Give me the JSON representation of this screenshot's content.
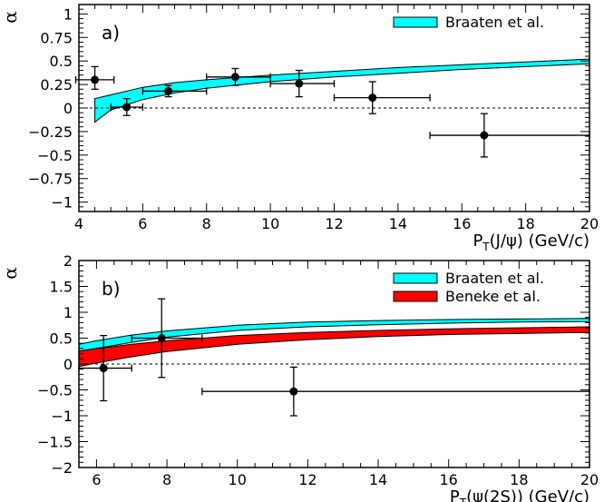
{
  "chart_data": [
    {
      "type": "scatter",
      "panel_label": "a)",
      "xlabel_main": "P",
      "xlabel_sub": "T",
      "xlabel_rest": "(J/ψ) (GeV/c)",
      "ylabel": "α",
      "xlim": [
        4,
        20
      ],
      "ylim": [
        -1.1,
        1.1
      ],
      "xticks": [
        4,
        6,
        8,
        10,
        12,
        14,
        16,
        18,
        20
      ],
      "yticks": [
        -1,
        -0.75,
        -0.5,
        -0.25,
        0,
        0.25,
        0.5,
        0.75,
        1
      ],
      "ytick_labels": [
        "−1",
        "−0.75",
        "−0.5",
        "−0.25",
        "0",
        "0.25",
        "0.5",
        "0.75",
        "1"
      ],
      "zero_line": true,
      "legend_position": "top-right",
      "bands": [
        {
          "name": "Braaten et al.",
          "color": "#00ffff",
          "x": [
            4.5,
            5,
            6,
            7,
            8,
            10,
            12,
            14,
            16,
            18,
            20
          ],
          "lower": [
            -0.15,
            -0.02,
            0.09,
            0.16,
            0.21,
            0.28,
            0.33,
            0.37,
            0.41,
            0.44,
            0.47
          ],
          "upper": [
            0.1,
            0.14,
            0.22,
            0.27,
            0.3,
            0.35,
            0.39,
            0.43,
            0.46,
            0.49,
            0.52
          ]
        }
      ],
      "points": [
        {
          "x": 4.5,
          "y": 0.3,
          "xerr": [
            0.6,
            0.6
          ],
          "yerr": [
            0.1,
            0.14
          ]
        },
        {
          "x": 5.5,
          "y": 0.01,
          "xerr": [
            0.5,
            0.5
          ],
          "yerr": [
            0.09,
            0.09
          ]
        },
        {
          "x": 6.8,
          "y": 0.18,
          "xerr": [
            0.8,
            1.2
          ],
          "yerr": [
            0.06,
            0.06
          ]
        },
        {
          "x": 8.9,
          "y": 0.33,
          "xerr": [
            0.9,
            1.1
          ],
          "yerr": [
            0.09,
            0.09
          ]
        },
        {
          "x": 10.9,
          "y": 0.26,
          "xerr": [
            0.9,
            1.1
          ],
          "yerr": [
            0.14,
            0.14
          ]
        },
        {
          "x": 13.2,
          "y": 0.11,
          "xerr": [
            1.2,
            1.8
          ],
          "yerr": [
            0.17,
            0.17
          ]
        },
        {
          "x": 16.7,
          "y": -0.29,
          "xerr": [
            1.7,
            3.3
          ],
          "yerr": [
            0.23,
            0.23
          ]
        }
      ]
    },
    {
      "type": "scatter",
      "panel_label": "b)",
      "xlabel_main": "P",
      "xlabel_sub": "T",
      "xlabel_rest": "(ψ(2S)) (GeV/c)",
      "ylabel": "α",
      "xlim": [
        5.5,
        20
      ],
      "ylim": [
        -2,
        2
      ],
      "xticks": [
        6,
        8,
        10,
        12,
        14,
        16,
        18,
        20
      ],
      "yticks": [
        -2,
        -1.5,
        -1,
        -0.5,
        0,
        0.5,
        1,
        1.5,
        2
      ],
      "ytick_labels": [
        "−2",
        "−1.5",
        "−1",
        "−0.5",
        "0",
        "0.5",
        "1",
        "1.5",
        "2"
      ],
      "zero_line": true,
      "legend_position": "top-right",
      "bands": [
        {
          "name": "Braaten et al.",
          "color": "#00ffff",
          "x": [
            5.5,
            6,
            7,
            8,
            10,
            12,
            14,
            16,
            18,
            20
          ],
          "lower": [
            0.23,
            0.3,
            0.42,
            0.52,
            0.65,
            0.72,
            0.76,
            0.79,
            0.81,
            0.82
          ],
          "upper": [
            0.38,
            0.45,
            0.56,
            0.64,
            0.75,
            0.81,
            0.84,
            0.86,
            0.87,
            0.88
          ]
        },
        {
          "name": "Beneke et al.",
          "color": "#ff0000",
          "x": [
            5.5,
            6,
            7,
            8,
            10,
            12,
            14,
            16,
            18,
            20
          ],
          "lower": [
            -0.05,
            0.02,
            0.14,
            0.24,
            0.38,
            0.47,
            0.53,
            0.57,
            0.59,
            0.61
          ],
          "upper": [
            0.25,
            0.3,
            0.38,
            0.45,
            0.55,
            0.61,
            0.65,
            0.68,
            0.7,
            0.72
          ]
        }
      ],
      "points": [
        {
          "x": 6.2,
          "y": -0.08,
          "xerr": [
            0.7,
            0.8
          ],
          "yerr": [
            0.63,
            0.63
          ]
        },
        {
          "x": 7.85,
          "y": 0.5,
          "xerr": [
            0.85,
            1.15
          ],
          "yerr": [
            0.76,
            0.76
          ]
        },
        {
          "x": 11.6,
          "y": -0.53,
          "xerr": [
            2.6,
            8.4
          ],
          "yerr": [
            0.47,
            0.47
          ]
        }
      ]
    }
  ]
}
